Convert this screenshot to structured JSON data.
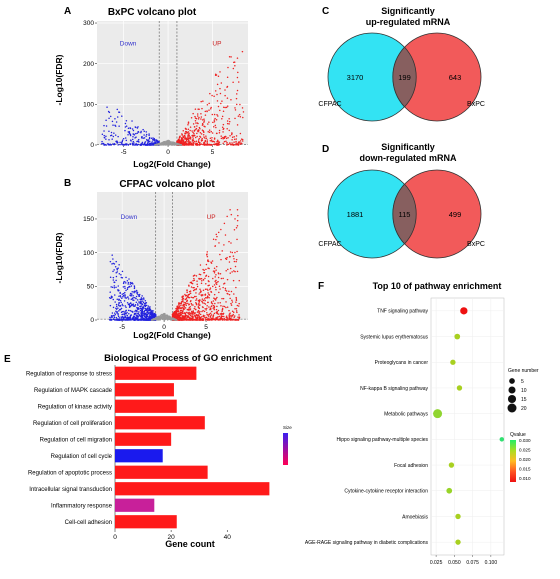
{
  "chart_data": [
    {
      "id": "A",
      "type": "scatter",
      "panel_letter": "A",
      "title": "BxPC volcano plot",
      "xlabel": "Log2(Fold Change)",
      "ylabel": "-Log10(FDR)",
      "xlim": [
        -8,
        9
      ],
      "ylim": [
        0,
        305
      ],
      "xticks": [
        -5,
        0,
        5
      ],
      "xtick_labels": [
        "-5",
        "0",
        "5"
      ],
      "yticks": [
        0,
        100,
        200,
        300
      ],
      "ytick_labels": [
        "0",
        "100",
        "200",
        "300"
      ],
      "grid": true,
      "threshold_x": [
        -1,
        1
      ],
      "threshold_y": 1.3,
      "labels": [
        {
          "text": "Down",
          "x": -4.5,
          "y": 245,
          "color": "#3333cc"
        },
        {
          "text": "UP",
          "x": 5.5,
          "y": 245,
          "color": "#cc2222"
        }
      ],
      "series": [
        {
          "color": "#2222dd",
          "side": "down",
          "n": 330,
          "max_x": -7.5,
          "max_y": 110
        },
        {
          "color": "#ee2222",
          "side": "up",
          "n": 620,
          "max_x": 8.5,
          "max_y": 290
        },
        {
          "color": "#999999",
          "side": "ns",
          "n": 300,
          "max_x": 1.5,
          "max_y": 12
        }
      ]
    },
    {
      "id": "B",
      "type": "scatter",
      "panel_letter": "B",
      "title": "CFPAC volcano plot",
      "xlabel": "Log2(Fold Change)",
      "ylabel": "-Log10(FDR)",
      "xlim": [
        -8,
        10
      ],
      "ylim": [
        0,
        190
      ],
      "xticks": [
        -5,
        0,
        5
      ],
      "xtick_labels": [
        "-5",
        "0",
        "5"
      ],
      "yticks": [
        0,
        50,
        100,
        150
      ],
      "ytick_labels": [
        "0",
        "50",
        "100",
        "150"
      ],
      "grid": true,
      "threshold_x": [
        -1,
        1
      ],
      "threshold_y": 1.3,
      "labels": [
        {
          "text": "Down",
          "x": -4.2,
          "y": 150,
          "color": "#3333cc"
        },
        {
          "text": "UP",
          "x": 5.6,
          "y": 150,
          "color": "#cc2222"
        }
      ],
      "series": [
        {
          "color": "#2222dd",
          "side": "down",
          "n": 900,
          "max_x": -6.5,
          "max_y": 95
        },
        {
          "color": "#ee2222",
          "side": "up",
          "n": 1100,
          "max_x": 9,
          "max_y": 185
        },
        {
          "color": "#999999",
          "side": "ns",
          "n": 300,
          "max_x": 1.5,
          "max_y": 10
        }
      ]
    },
    {
      "id": "C",
      "type": "venn",
      "panel_letter": "C",
      "title_lines": [
        "Significantly",
        "up-regulated mRNA"
      ],
      "sets": [
        "CFPAC",
        "BxPC"
      ],
      "only_left": 3170,
      "intersection": 199,
      "only_right": 643,
      "colors": [
        "#33e3f3",
        "#f25a5a"
      ]
    },
    {
      "id": "D",
      "type": "venn",
      "panel_letter": "D",
      "title_lines": [
        "Significantly",
        "down-regulated mRNA"
      ],
      "sets": [
        "CFPAC",
        "BxPC"
      ],
      "only_left": 1881,
      "intersection": 115,
      "only_right": 499,
      "colors": [
        "#33e3f3",
        "#f25a5a"
      ]
    },
    {
      "id": "E",
      "type": "bar",
      "orientation": "horizontal",
      "panel_letter": "E",
      "title": "Biological Process of GO enrichment",
      "xlabel": "Gene count",
      "xlim": [
        0,
        57
      ],
      "xticks": [
        0,
        20,
        40
      ],
      "xtick_labels": [
        "0",
        "20",
        "40"
      ],
      "categories": [
        "Regulation of response to stress",
        "Regulation of MAPK cascade",
        "Regulation of kinase activity",
        "Regulation of cell proliferation",
        "Regulation of cell migration",
        "Regulation of cell cycle",
        "Regulation of apoptotic process",
        "Intracellular signal transduction",
        "Inflammatory response",
        "Cell-cell adhesion"
      ],
      "values": [
        29,
        21,
        22,
        32,
        20,
        17,
        33,
        55,
        14,
        22
      ],
      "colors": [
        "#ff1a1a",
        "#ff1a1a",
        "#ff1a1a",
        "#ff1a1a",
        "#ff1a1a",
        "#1a1aee",
        "#ff1a1a",
        "#ff1a1a",
        "#c8209a",
        "#ff1a1a"
      ],
      "legend_title": "Size",
      "legend_tick_labels": [
        "",
        "",
        "",
        "",
        ""
      ],
      "legend_colors": [
        "#3b1ef0",
        "#ff0055"
      ]
    },
    {
      "id": "F",
      "type": "scatter",
      "subtype": "dot",
      "panel_letter": "F",
      "title": "Top 10 of pathway enrichment",
      "xlim": [
        0.018,
        0.118
      ],
      "xticks": [
        0.025,
        0.05,
        0.075,
        0.1
      ],
      "xtick_labels": [
        "0.025",
        "0.050",
        "0.075",
        "0.100"
      ],
      "categories": [
        "TNF signaling pathway",
        "Systemic lupus erythematosus",
        "Proteoglycans in cancer",
        "NF-kappa B signaling pathway",
        "Metabolic pathways",
        "Hippo signaling pathway-multiple species",
        "Focal adhesion",
        "Cytokine-cytokine receptor interaction",
        "Amoebiasis",
        "AGE-RAGE signaling pathway in diabetic complications"
      ],
      "x": [
        0.063,
        0.054,
        0.048,
        0.057,
        0.027,
        0.115,
        0.046,
        0.043,
        0.055,
        0.055
      ],
      "gene_number": [
        11,
        5,
        4,
        4,
        20,
        2,
        4,
        5,
        4,
        4
      ],
      "colors": [
        "#ee1111",
        "#a8d020",
        "#a8d020",
        "#a8d020",
        "#90d530",
        "#30e070",
        "#a8d020",
        "#98d428",
        "#a8d020",
        "#a8d020"
      ],
      "size_legend_title": "Gene number",
      "size_legend": [
        5,
        10,
        15,
        20
      ],
      "color_legend_title": "Qvalue",
      "color_legend_ticks": [
        "0.030",
        "0.025",
        "0.020",
        "0.015",
        "0.010"
      ],
      "color_legend_colors": [
        "#22ee66",
        "#aadd22",
        "#ffbb22",
        "#ff5522",
        "#ee1111"
      ]
    }
  ]
}
